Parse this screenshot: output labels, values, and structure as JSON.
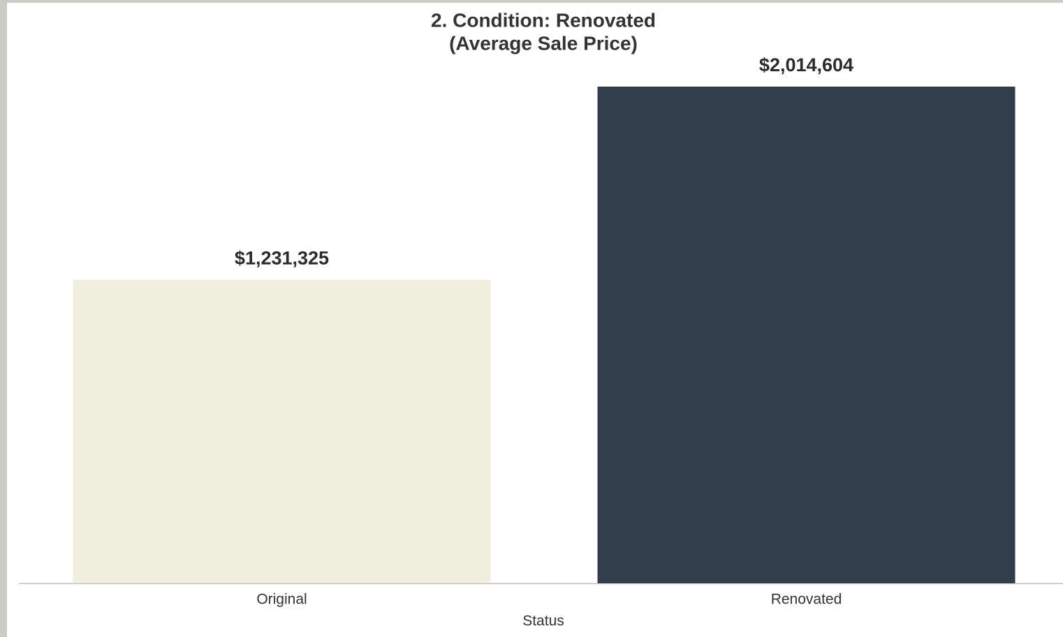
{
  "chart_data": {
    "type": "bar",
    "title": [
      "2. Condition: Renovated",
      "(Average Sale Price)"
    ],
    "x_label": "Status",
    "categories": [
      "Original",
      "Renovated"
    ],
    "values": [
      1231325,
      2014604
    ],
    "value_labels": [
      "$1,231,325",
      "$2,014,604"
    ],
    "colors": [
      "#f0efdd",
      "#323e4b"
    ]
  }
}
